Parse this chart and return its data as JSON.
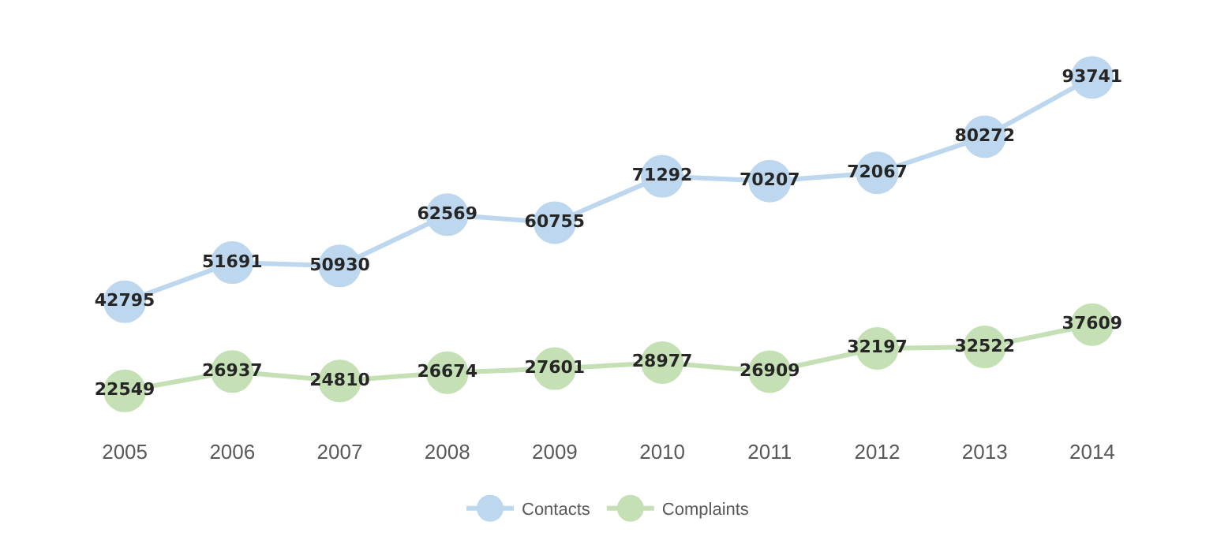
{
  "chart_data": {
    "type": "line",
    "categories": [
      "2005",
      "2006",
      "2007",
      "2008",
      "2009",
      "2010",
      "2011",
      "2012",
      "2013",
      "2014"
    ],
    "series": [
      {
        "name": "Contacts",
        "color": "#bdd7ee",
        "values": [
          42795,
          51691,
          50930,
          62569,
          60755,
          71292,
          70207,
          72067,
          80272,
          93741
        ]
      },
      {
        "name": "Complaints",
        "color": "#c5e0b4",
        "values": [
          22549,
          26937,
          24810,
          26674,
          27601,
          28977,
          26909,
          32197,
          32522,
          37609
        ]
      }
    ],
    "data_labels": true,
    "marker": "circle",
    "line_style": "solid",
    "legend": "bottom",
    "grid": false,
    "tick_labels": "x"
  }
}
